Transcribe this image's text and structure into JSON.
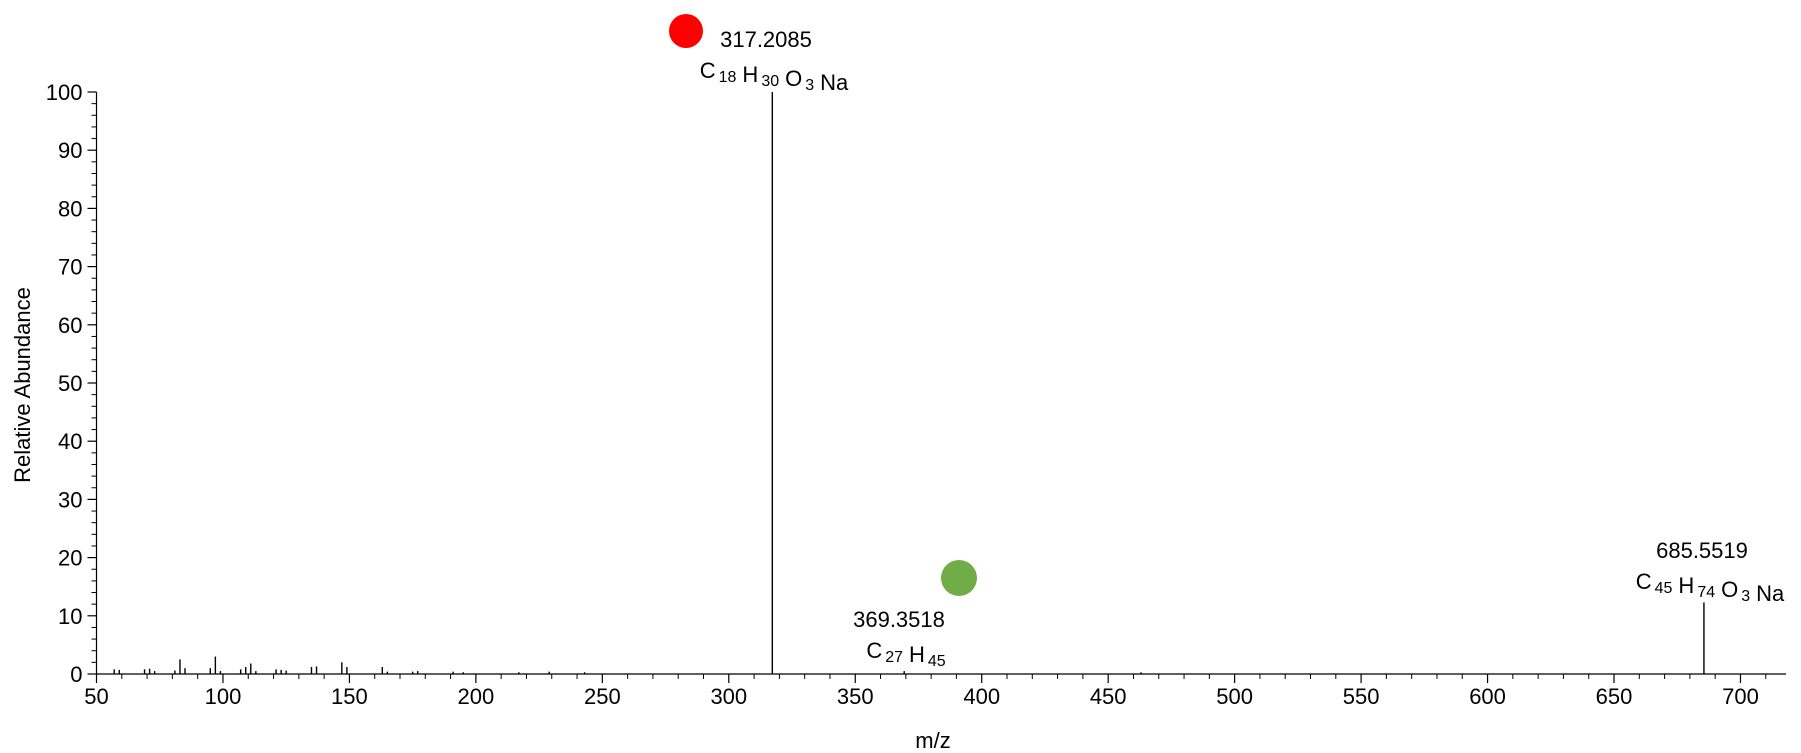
{
  "chart_data": {
    "type": "spectrum",
    "xlabel": "m/z",
    "ylabel": "Relative Abundance",
    "xlim": [
      50,
      718
    ],
    "ylim": [
      0,
      100
    ],
    "xticks": [
      50,
      100,
      150,
      200,
      250,
      300,
      350,
      400,
      450,
      500,
      550,
      600,
      650,
      700
    ],
    "xminorticks": [
      60,
      70,
      80,
      90,
      110,
      120,
      130,
      140,
      160,
      170,
      180,
      190,
      210,
      220,
      230,
      240,
      260,
      270,
      280,
      290,
      310,
      320,
      330,
      340,
      360,
      370,
      380,
      390,
      410,
      420,
      430,
      440,
      460,
      470,
      480,
      490,
      510,
      520,
      530,
      540,
      560,
      570,
      580,
      590,
      610,
      620,
      630,
      640,
      660,
      670,
      680,
      690,
      710
    ],
    "yticks": [
      0,
      10,
      20,
      30,
      40,
      50,
      60,
      70,
      80,
      90,
      100
    ],
    "yminorticks": [
      2,
      4,
      6,
      8,
      12,
      14,
      16,
      18,
      22,
      24,
      26,
      28,
      32,
      34,
      36,
      38,
      42,
      44,
      46,
      48,
      52,
      54,
      56,
      58,
      62,
      64,
      66,
      68,
      72,
      74,
      76,
      78,
      82,
      84,
      86,
      88,
      92,
      94,
      96,
      98
    ],
    "color": "#000000",
    "x": [
      57,
      59,
      69,
      71,
      73,
      81,
      83,
      85,
      95,
      97,
      99,
      107,
      109,
      111,
      113,
      121,
      123,
      125,
      135,
      137,
      147,
      149,
      163,
      165,
      175,
      177,
      191,
      195,
      217,
      229,
      243,
      317.2085,
      369.3518,
      463,
      685.5519
    ],
    "values": [
      0.8,
      0.7,
      0.8,
      0.9,
      0.5,
      0.6,
      2.5,
      1,
      1,
      3,
      0.5,
      0.8,
      1.2,
      1.8,
      0.5,
      0.8,
      0.7,
      0.6,
      1.2,
      1.3,
      2,
      1.2,
      1.2,
      0.4,
      0.4,
      0.5,
      0.4,
      0.3,
      0.3,
      0.4,
      0.3,
      100,
      0.5,
      0.3,
      12.3
    ],
    "annotations": [
      {
        "label": "317.2085",
        "formula": [
          {
            "text": "C",
            "sub": "18"
          },
          {
            "text": "H",
            "sub": "30"
          },
          {
            "text": "O",
            "sub": "3"
          },
          {
            "text": "Na"
          }
        ]
      },
      {
        "label": "369.3518",
        "formula": [
          {
            "text": "C",
            "sub": "27"
          },
          {
            "text": "H",
            "sub": "45"
          }
        ]
      },
      {
        "label": "685.5519",
        "formula": [
          {
            "text": "C",
            "sub": "45"
          },
          {
            "text": "H",
            "sub": "74"
          },
          {
            "text": "O",
            "sub": "3"
          },
          {
            "text": "Na"
          }
        ]
      }
    ]
  }
}
